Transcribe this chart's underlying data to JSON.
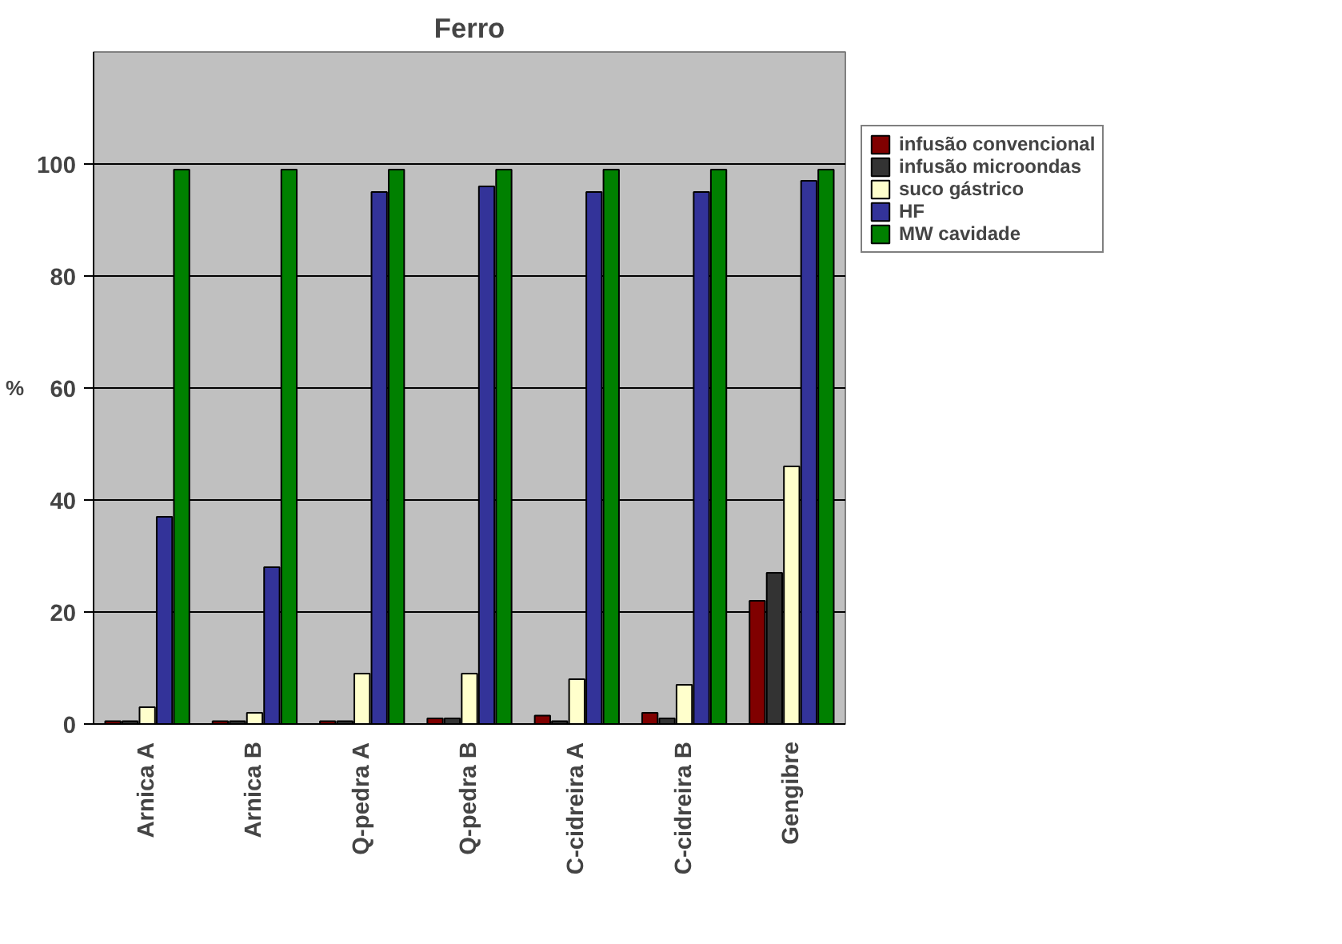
{
  "chart_data": {
    "type": "bar",
    "title": "Ferro",
    "ylabel": "%",
    "categories": [
      "Arnica A",
      "Arnica B",
      "Q-pedra A",
      "Q-pedra B",
      "C-cidreira A",
      "C-cidreira B",
      "Gengibre"
    ],
    "series": [
      {
        "name": "infusão convencional",
        "color": "#800000",
        "values": [
          0.5,
          0.5,
          0.5,
          1,
          1.5,
          2,
          22
        ]
      },
      {
        "name": "infusão microondas",
        "color": "#333333",
        "values": [
          0.5,
          0.5,
          0.5,
          1,
          0.5,
          1,
          27
        ]
      },
      {
        "name": "suco gástrico",
        "color": "#ffffcc",
        "values": [
          3,
          2,
          9,
          9,
          8,
          7,
          46
        ]
      },
      {
        "name": "HF",
        "color": "#333399",
        "values": [
          37,
          28,
          95,
          96,
          95,
          95,
          97
        ]
      },
      {
        "name": "MW cavidade",
        "color": "#008000",
        "values": [
          99,
          99,
          99,
          99,
          99,
          99,
          99
        ]
      }
    ],
    "ylim": [
      0,
      120
    ],
    "yticks": [
      0,
      20,
      40,
      60,
      80,
      100
    ],
    "grid": "y",
    "legend": "right"
  }
}
